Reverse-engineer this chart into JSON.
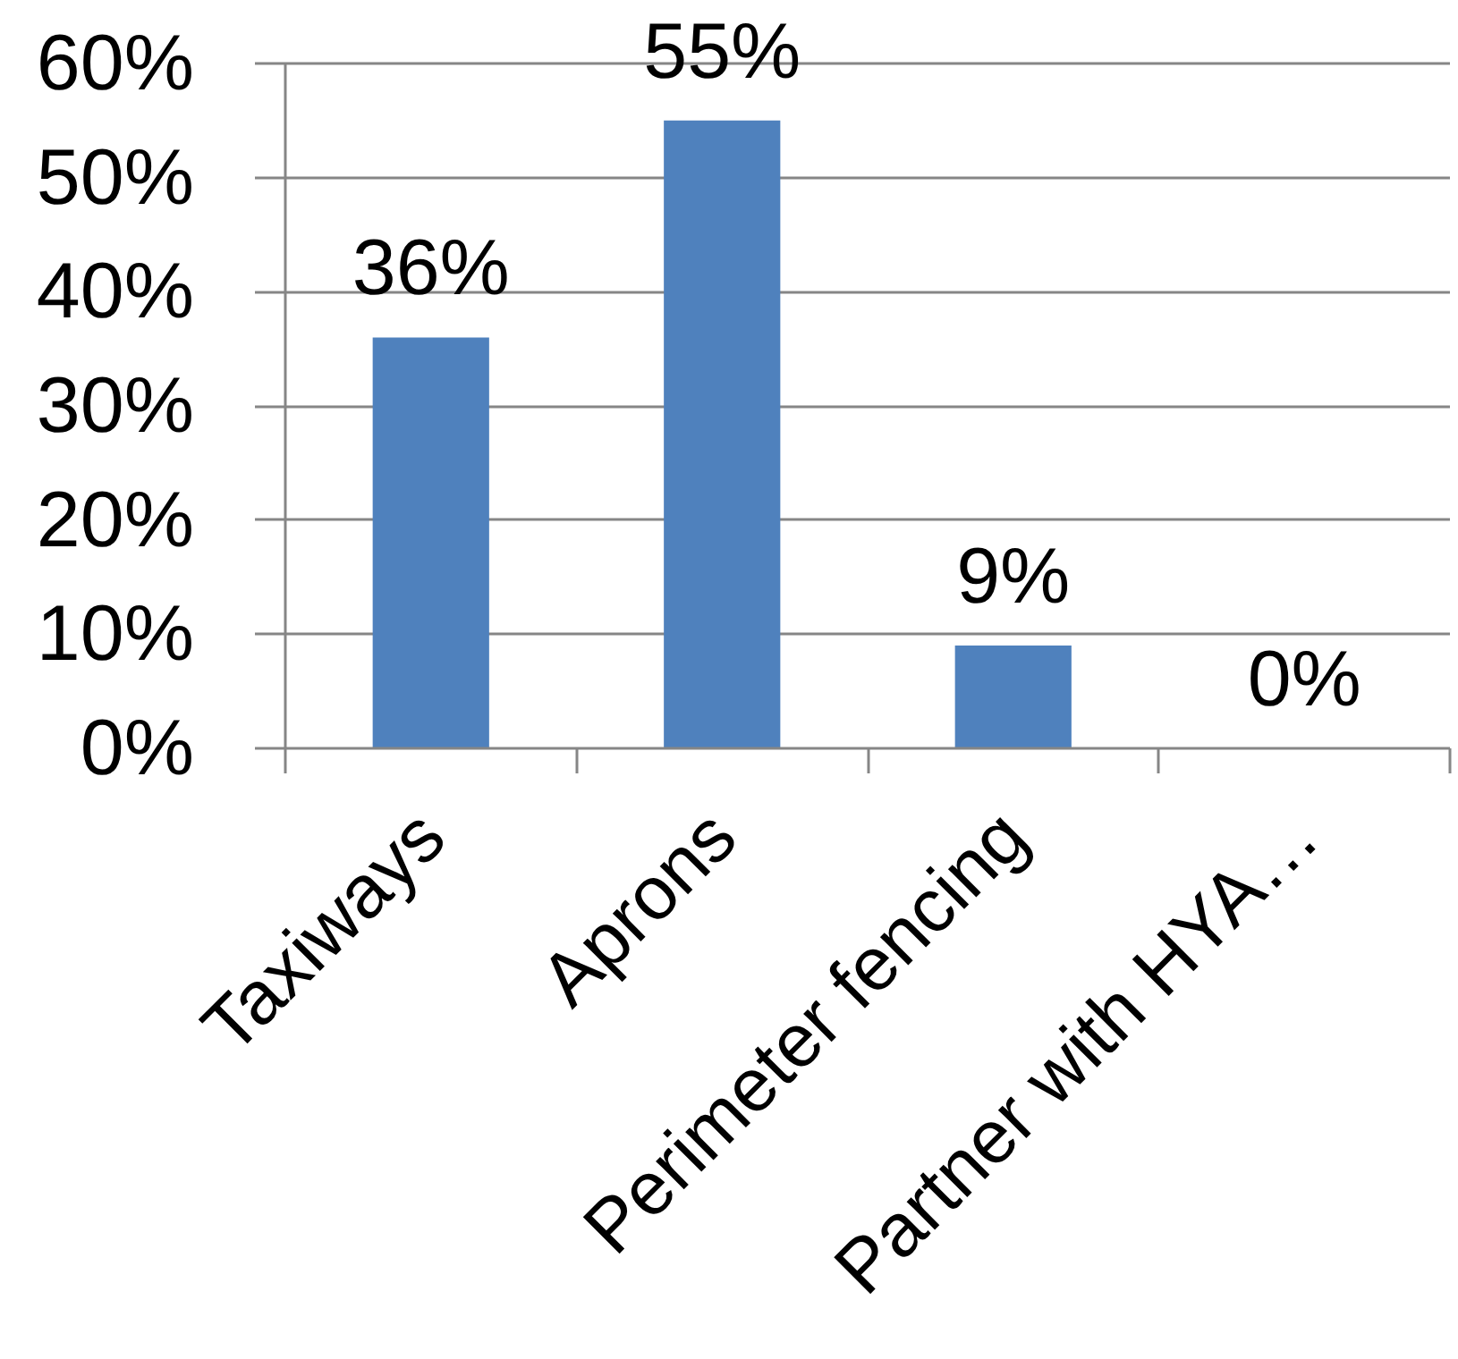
{
  "chart_data": {
    "type": "bar",
    "categories": [
      "Taxiways",
      "Aprons",
      "Perimeter fencing",
      "Partner with HYA…"
    ],
    "values": [
      36,
      55,
      9,
      0
    ],
    "color": "#4f81bd",
    "value_labels": [
      "36%",
      "55%",
      "9%",
      "0%"
    ],
    "ylim": [
      0,
      60
    ],
    "yticks": [
      {
        "value": 0,
        "label": "0%"
      },
      {
        "value": 10,
        "label": "10%"
      },
      {
        "value": 20,
        "label": "20%"
      },
      {
        "value": 30,
        "label": "30%"
      },
      {
        "value": 40,
        "label": "40%"
      },
      {
        "value": 50,
        "label": "50%"
      },
      {
        "value": 60,
        "label": "60%"
      }
    ],
    "grid": "y"
  }
}
